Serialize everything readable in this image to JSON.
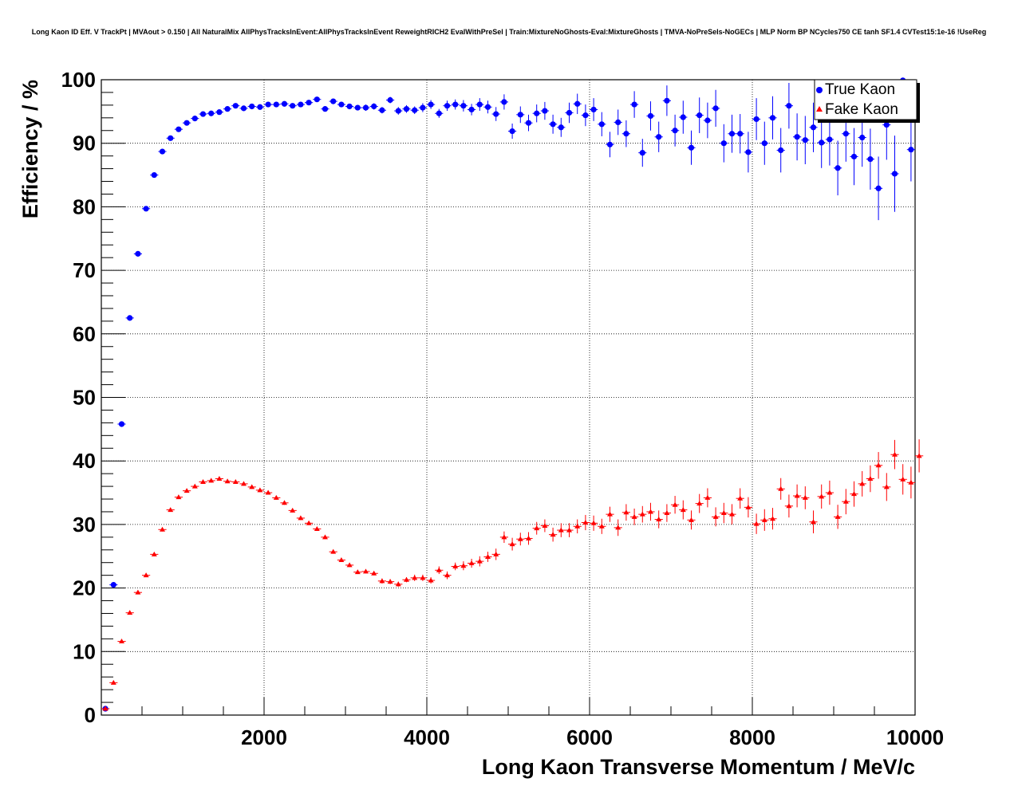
{
  "chart_data": {
    "type": "scatter",
    "title": "Long Kaon ID Eff. V TrackPt | MVAout > 0.150 | All NaturalMix AllPhysTracksInEvent:AllPhysTracksInEvent ReweightRICH2 EvalWithPreSel | Train:MixtureNoGhosts-Eval:MixtureGhosts | TMVA-NoPreSels-NoGECs | MLP Norm BP NCycles750 CE tanh SF1.4 CVTest15:1e-16 !UseReg",
    "xlabel": "Long Kaon Transverse Momentum / MeV/c",
    "ylabel": "Efficiency / %",
    "xlim": [
      0,
      10000
    ],
    "ylim": [
      0,
      100
    ],
    "x_ticks": [
      2000,
      4000,
      6000,
      8000,
      10000
    ],
    "y_ticks": [
      0,
      10,
      20,
      30,
      40,
      50,
      60,
      70,
      80,
      90,
      100
    ],
    "grid": true,
    "legend_position": "top-right",
    "series": [
      {
        "name": "True Kaon",
        "color": "#0000ff",
        "marker": "circle",
        "x": [
          50,
          150,
          250,
          350,
          450,
          550,
          650,
          750,
          850,
          950,
          1050,
          1150,
          1250,
          1350,
          1450,
          1550,
          1650,
          1750,
          1850,
          1950,
          2050,
          2150,
          2250,
          2350,
          2450,
          2550,
          2650,
          2750,
          2850,
          2950,
          3050,
          3150,
          3250,
          3350,
          3450,
          3550,
          3650,
          3750,
          3850,
          3950,
          4050,
          4150,
          4250,
          4350,
          4450,
          4550,
          4650,
          4750,
          4850,
          4950,
          5050,
          5150,
          5250,
          5350,
          5450,
          5550,
          5650,
          5750,
          5850,
          5950,
          6050,
          6150,
          6250,
          6350,
          6450,
          6550,
          6650,
          6750,
          6850,
          6950,
          7050,
          7150,
          7250,
          7350,
          7450,
          7550,
          7650,
          7750,
          7850,
          7950,
          8050,
          8150,
          8250,
          8350,
          8450,
          8550,
          8650,
          8750,
          8850,
          8950,
          9050,
          9150,
          9250,
          9350,
          9450,
          9550,
          9650,
          9750,
          9850,
          9950
        ],
        "y": [
          1.0,
          20.5,
          45.8,
          62.5,
          72.6,
          79.7,
          85.0,
          88.7,
          90.8,
          92.2,
          93.2,
          93.9,
          94.6,
          94.7,
          94.9,
          95.4,
          95.9,
          95.5,
          95.8,
          95.7,
          96.1,
          96.1,
          96.2,
          95.9,
          96.1,
          96.4,
          96.9,
          95.4,
          96.6,
          96.1,
          95.8,
          95.6,
          95.6,
          95.8,
          95.2,
          96.8,
          95.1,
          95.4,
          95.2,
          95.6,
          96.1,
          94.7,
          95.9,
          96.1,
          95.9,
          95.3,
          96.1,
          95.7,
          94.6,
          96.5,
          91.9,
          94.5,
          93.2,
          94.7,
          95.1,
          93.0,
          92.5,
          94.8,
          96.2,
          94.4,
          95.3,
          93.0,
          89.8,
          93.3,
          91.5,
          96.1,
          88.5,
          94.3,
          91.0,
          96.7,
          92.0,
          94.1,
          89.3,
          94.4,
          93.6,
          95.5,
          90.0,
          91.5,
          91.5,
          88.6,
          93.8,
          90.0,
          94.0,
          88.9,
          95.9,
          91.0,
          90.5,
          92.5,
          90.1,
          90.6,
          86.1,
          91.5,
          87.9,
          90.9,
          87.5,
          82.9,
          92.9,
          85.2,
          99.9,
          89.0
        ],
        "y_err": [
          0.1,
          0.2,
          0.3,
          0.3,
          0.3,
          0.3,
          0.3,
          0.3,
          0.3,
          0.3,
          0.3,
          0.3,
          0.3,
          0.3,
          0.3,
          0.3,
          0.3,
          0.3,
          0.3,
          0.3,
          0.3,
          0.3,
          0.3,
          0.3,
          0.3,
          0.4,
          0.4,
          0.4,
          0.4,
          0.4,
          0.4,
          0.4,
          0.5,
          0.5,
          0.5,
          0.5,
          0.6,
          0.6,
          0.6,
          0.7,
          0.7,
          0.7,
          0.8,
          0.8,
          0.9,
          0.9,
          1.0,
          1.0,
          1.1,
          1.2,
          1.2,
          1.3,
          1.3,
          1.4,
          1.4,
          1.5,
          1.5,
          1.6,
          1.6,
          1.7,
          1.8,
          1.9,
          2.0,
          2.0,
          2.1,
          2.1,
          2.2,
          2.3,
          2.4,
          2.4,
          2.5,
          2.6,
          2.7,
          2.8,
          2.8,
          2.9,
          3.0,
          3.0,
          3.1,
          3.2,
          3.3,
          3.4,
          3.4,
          3.5,
          3.6,
          3.7,
          3.8,
          3.9,
          4.0,
          4.1,
          4.3,
          4.4,
          4.5,
          4.6,
          4.8,
          5.0,
          5.5,
          6.0,
          0.5,
          5.0
        ]
      },
      {
        "name": "Fake Kaon",
        "color": "#ff0000",
        "marker": "triangle",
        "x": [
          50,
          150,
          250,
          350,
          450,
          550,
          650,
          750,
          850,
          950,
          1050,
          1150,
          1250,
          1350,
          1450,
          1550,
          1650,
          1750,
          1850,
          1950,
          2050,
          2150,
          2250,
          2350,
          2450,
          2550,
          2650,
          2750,
          2850,
          2950,
          3050,
          3150,
          3250,
          3350,
          3450,
          3550,
          3650,
          3750,
          3850,
          3950,
          4050,
          4150,
          4250,
          4350,
          4450,
          4550,
          4650,
          4750,
          4850,
          4950,
          5050,
          5150,
          5250,
          5350,
          5450,
          5550,
          5650,
          5750,
          5850,
          5950,
          6050,
          6150,
          6250,
          6350,
          6450,
          6550,
          6650,
          6750,
          6850,
          6950,
          7050,
          7150,
          7250,
          7350,
          7450,
          7550,
          7650,
          7750,
          7850,
          7950,
          8050,
          8150,
          8250,
          8350,
          8450,
          8550,
          8650,
          8750,
          8850,
          8950,
          9050,
          9150,
          9250,
          9350,
          9450,
          9550,
          9650,
          9750,
          9850,
          9950,
          10050
        ],
        "y": [
          1.0,
          5.1,
          11.6,
          16.1,
          19.3,
          22.0,
          25.3,
          29.2,
          32.3,
          34.3,
          35.3,
          36.0,
          36.7,
          36.9,
          37.2,
          36.8,
          36.7,
          36.4,
          35.9,
          35.4,
          35.0,
          34.2,
          33.4,
          32.2,
          31.0,
          30.2,
          29.3,
          28.0,
          25.7,
          24.4,
          23.6,
          22.5,
          22.6,
          22.3,
          21.1,
          21.0,
          20.6,
          21.3,
          21.6,
          21.6,
          21.2,
          22.8,
          22.0,
          23.4,
          23.5,
          23.9,
          24.2,
          24.9,
          25.3,
          28.0,
          26.9,
          27.7,
          27.8,
          29.4,
          29.8,
          28.4,
          29.1,
          29.1,
          29.7,
          30.3,
          30.2,
          29.7,
          31.6,
          29.5,
          31.9,
          31.2,
          31.6,
          32.0,
          30.8,
          31.8,
          33.1,
          32.3,
          30.7,
          33.3,
          34.2,
          31.2,
          31.8,
          31.6,
          34.1,
          32.7,
          30.1,
          30.7,
          30.9,
          35.6,
          32.9,
          34.5,
          34.2,
          30.4,
          34.4,
          35.0,
          31.2,
          33.6,
          34.8,
          36.4,
          37.2,
          39.3,
          35.9,
          41.0,
          37.1,
          36.6,
          40.8
        ],
        "y_err": [
          0.1,
          0.2,
          0.2,
          0.2,
          0.3,
          0.3,
          0.3,
          0.3,
          0.3,
          0.3,
          0.3,
          0.3,
          0.3,
          0.3,
          0.3,
          0.3,
          0.3,
          0.3,
          0.3,
          0.3,
          0.3,
          0.3,
          0.3,
          0.3,
          0.3,
          0.3,
          0.3,
          0.3,
          0.3,
          0.3,
          0.3,
          0.3,
          0.3,
          0.3,
          0.4,
          0.4,
          0.4,
          0.4,
          0.5,
          0.5,
          0.5,
          0.6,
          0.6,
          0.6,
          0.7,
          0.7,
          0.8,
          0.8,
          0.9,
          0.9,
          1.0,
          1.0,
          1.0,
          1.0,
          1.0,
          1.1,
          1.1,
          1.1,
          1.1,
          1.2,
          1.2,
          1.2,
          1.2,
          1.3,
          1.3,
          1.3,
          1.3,
          1.4,
          1.4,
          1.4,
          1.4,
          1.5,
          1.5,
          1.5,
          1.5,
          1.5,
          1.6,
          1.6,
          1.6,
          1.6,
          1.6,
          1.7,
          1.7,
          1.7,
          1.8,
          1.8,
          1.8,
          1.8,
          1.9,
          1.9,
          1.9,
          2.0,
          2.0,
          2.0,
          2.1,
          2.1,
          2.2,
          2.3,
          2.4,
          2.5,
          2.6
        ]
      }
    ]
  }
}
